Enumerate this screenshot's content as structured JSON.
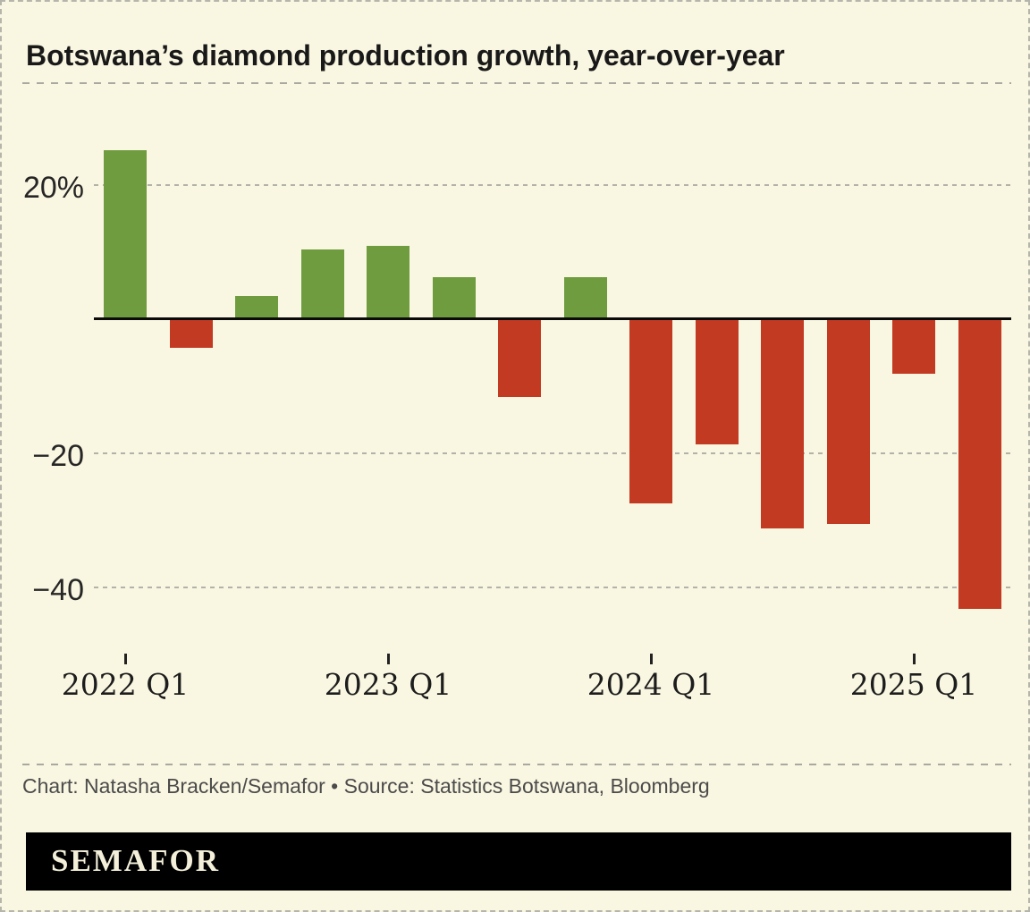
{
  "page": {
    "title": "Botswana’s diamond production growth, year-over-year",
    "caption": "Chart: Natasha Bracken/Semafor • Source: Statistics Botswana, Bloomberg",
    "logo_text": "SEMAFOR",
    "background_color": "#f9f6e1"
  },
  "chart_data": {
    "type": "bar",
    "title": "Botswana’s diamond production growth, year-over-year",
    "unit": "percent year-over-year",
    "categories": [
      "2022 Q1",
      "2022 Q2",
      "2022 Q3",
      "2022 Q4",
      "2023 Q1",
      "2023 Q2",
      "2023 Q3",
      "2023 Q4",
      "2024 Q1",
      "2024 Q2",
      "2024 Q3",
      "2024 Q4",
      "2025 Q1",
      "2025 Q2"
    ],
    "values": [
      25.1,
      -4.3,
      3.4,
      10.3,
      10.9,
      6.2,
      -11.6,
      6.2,
      -27.5,
      -18.7,
      -31.2,
      -30.6,
      -8.2,
      -43.2
    ],
    "x_tick_labels": [
      "2022 Q1",
      "2023 Q1",
      "2024 Q1",
      "2025 Q1"
    ],
    "y_ticks": [
      {
        "value": 20,
        "label": "20%"
      },
      {
        "value": -20,
        "label": "−20"
      },
      {
        "value": -40,
        "label": "−40"
      }
    ],
    "ylim": [
      -47,
      28
    ],
    "baseline": 0,
    "grid": "horizontal-dashed",
    "legend_position": "none",
    "positive_color": "#6f9c3f",
    "negative_color": "#c23a22"
  }
}
